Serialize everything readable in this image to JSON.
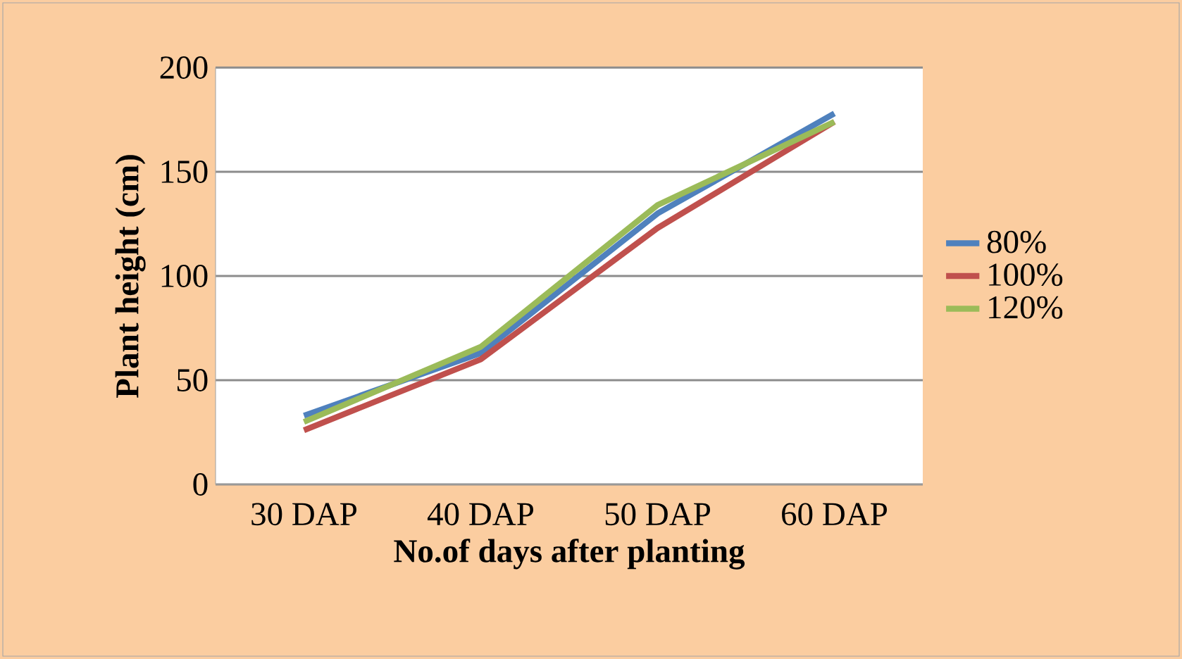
{
  "chart_data": {
    "type": "line",
    "xlabel": "No.of days after planting",
    "ylabel": "Plant height (cm)",
    "categories": [
      "30 DAP",
      "40 DAP",
      "50 DAP",
      "60 DAP"
    ],
    "series": [
      {
        "name": "80%",
        "color": "#4f81bd",
        "values": [
          33,
          63,
          130,
          178
        ]
      },
      {
        "name": "100%",
        "color": "#c0504d",
        "values": [
          26,
          60,
          123,
          174
        ]
      },
      {
        "name": "120%",
        "color": "#9bbb59",
        "values": [
          30,
          66,
          134,
          174
        ]
      }
    ],
    "ylim": [
      0,
      200
    ],
    "yticks": [
      0,
      50,
      100,
      150,
      200
    ],
    "grid": "y",
    "legend": "right",
    "marker": "none",
    "line_style": "solid"
  }
}
